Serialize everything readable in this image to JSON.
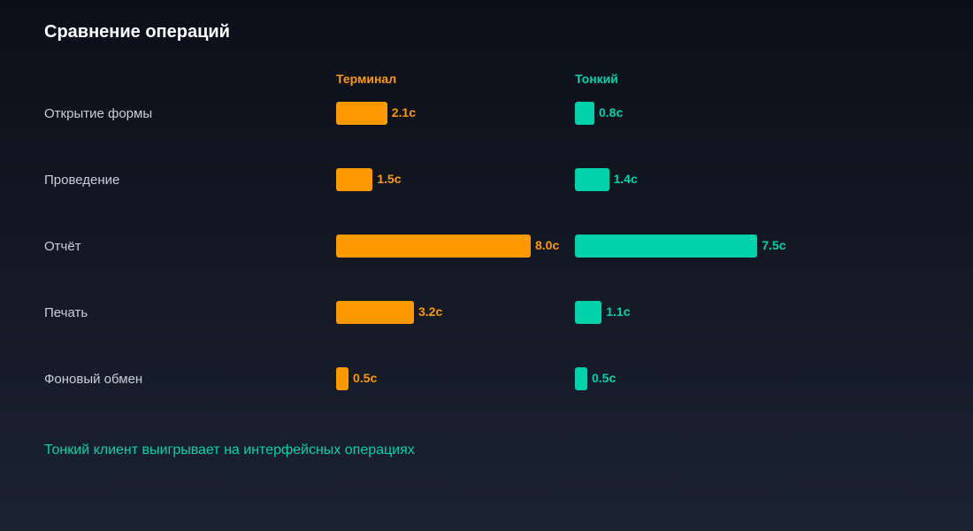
{
  "colors": {
    "terminal": "#ff9900",
    "thin": "#00d3aa"
  },
  "chart_data": {
    "type": "bar",
    "title": "Сравнение операций",
    "categories": [
      "Открытие формы",
      "Проведение",
      "Отчёт",
      "Печать",
      "Фоновый обмен"
    ],
    "series": [
      {
        "name": "Терминал",
        "values": [
          2.1,
          1.5,
          8.0,
          3.2,
          0.5
        ],
        "labels": [
          "2.1с",
          "1.5с",
          "8.0с",
          "3.2с",
          "0.5с"
        ]
      },
      {
        "name": "Тонкий",
        "values": [
          0.8,
          1.4,
          7.5,
          1.1,
          0.5
        ],
        "labels": [
          "0.8с",
          "1.4с",
          "7.5с",
          "1.1с",
          "0.5с"
        ]
      }
    ],
    "xlim": [
      0,
      8
    ],
    "note": "Тонкий клиент выигрывает на интерфейсных операциях"
  }
}
